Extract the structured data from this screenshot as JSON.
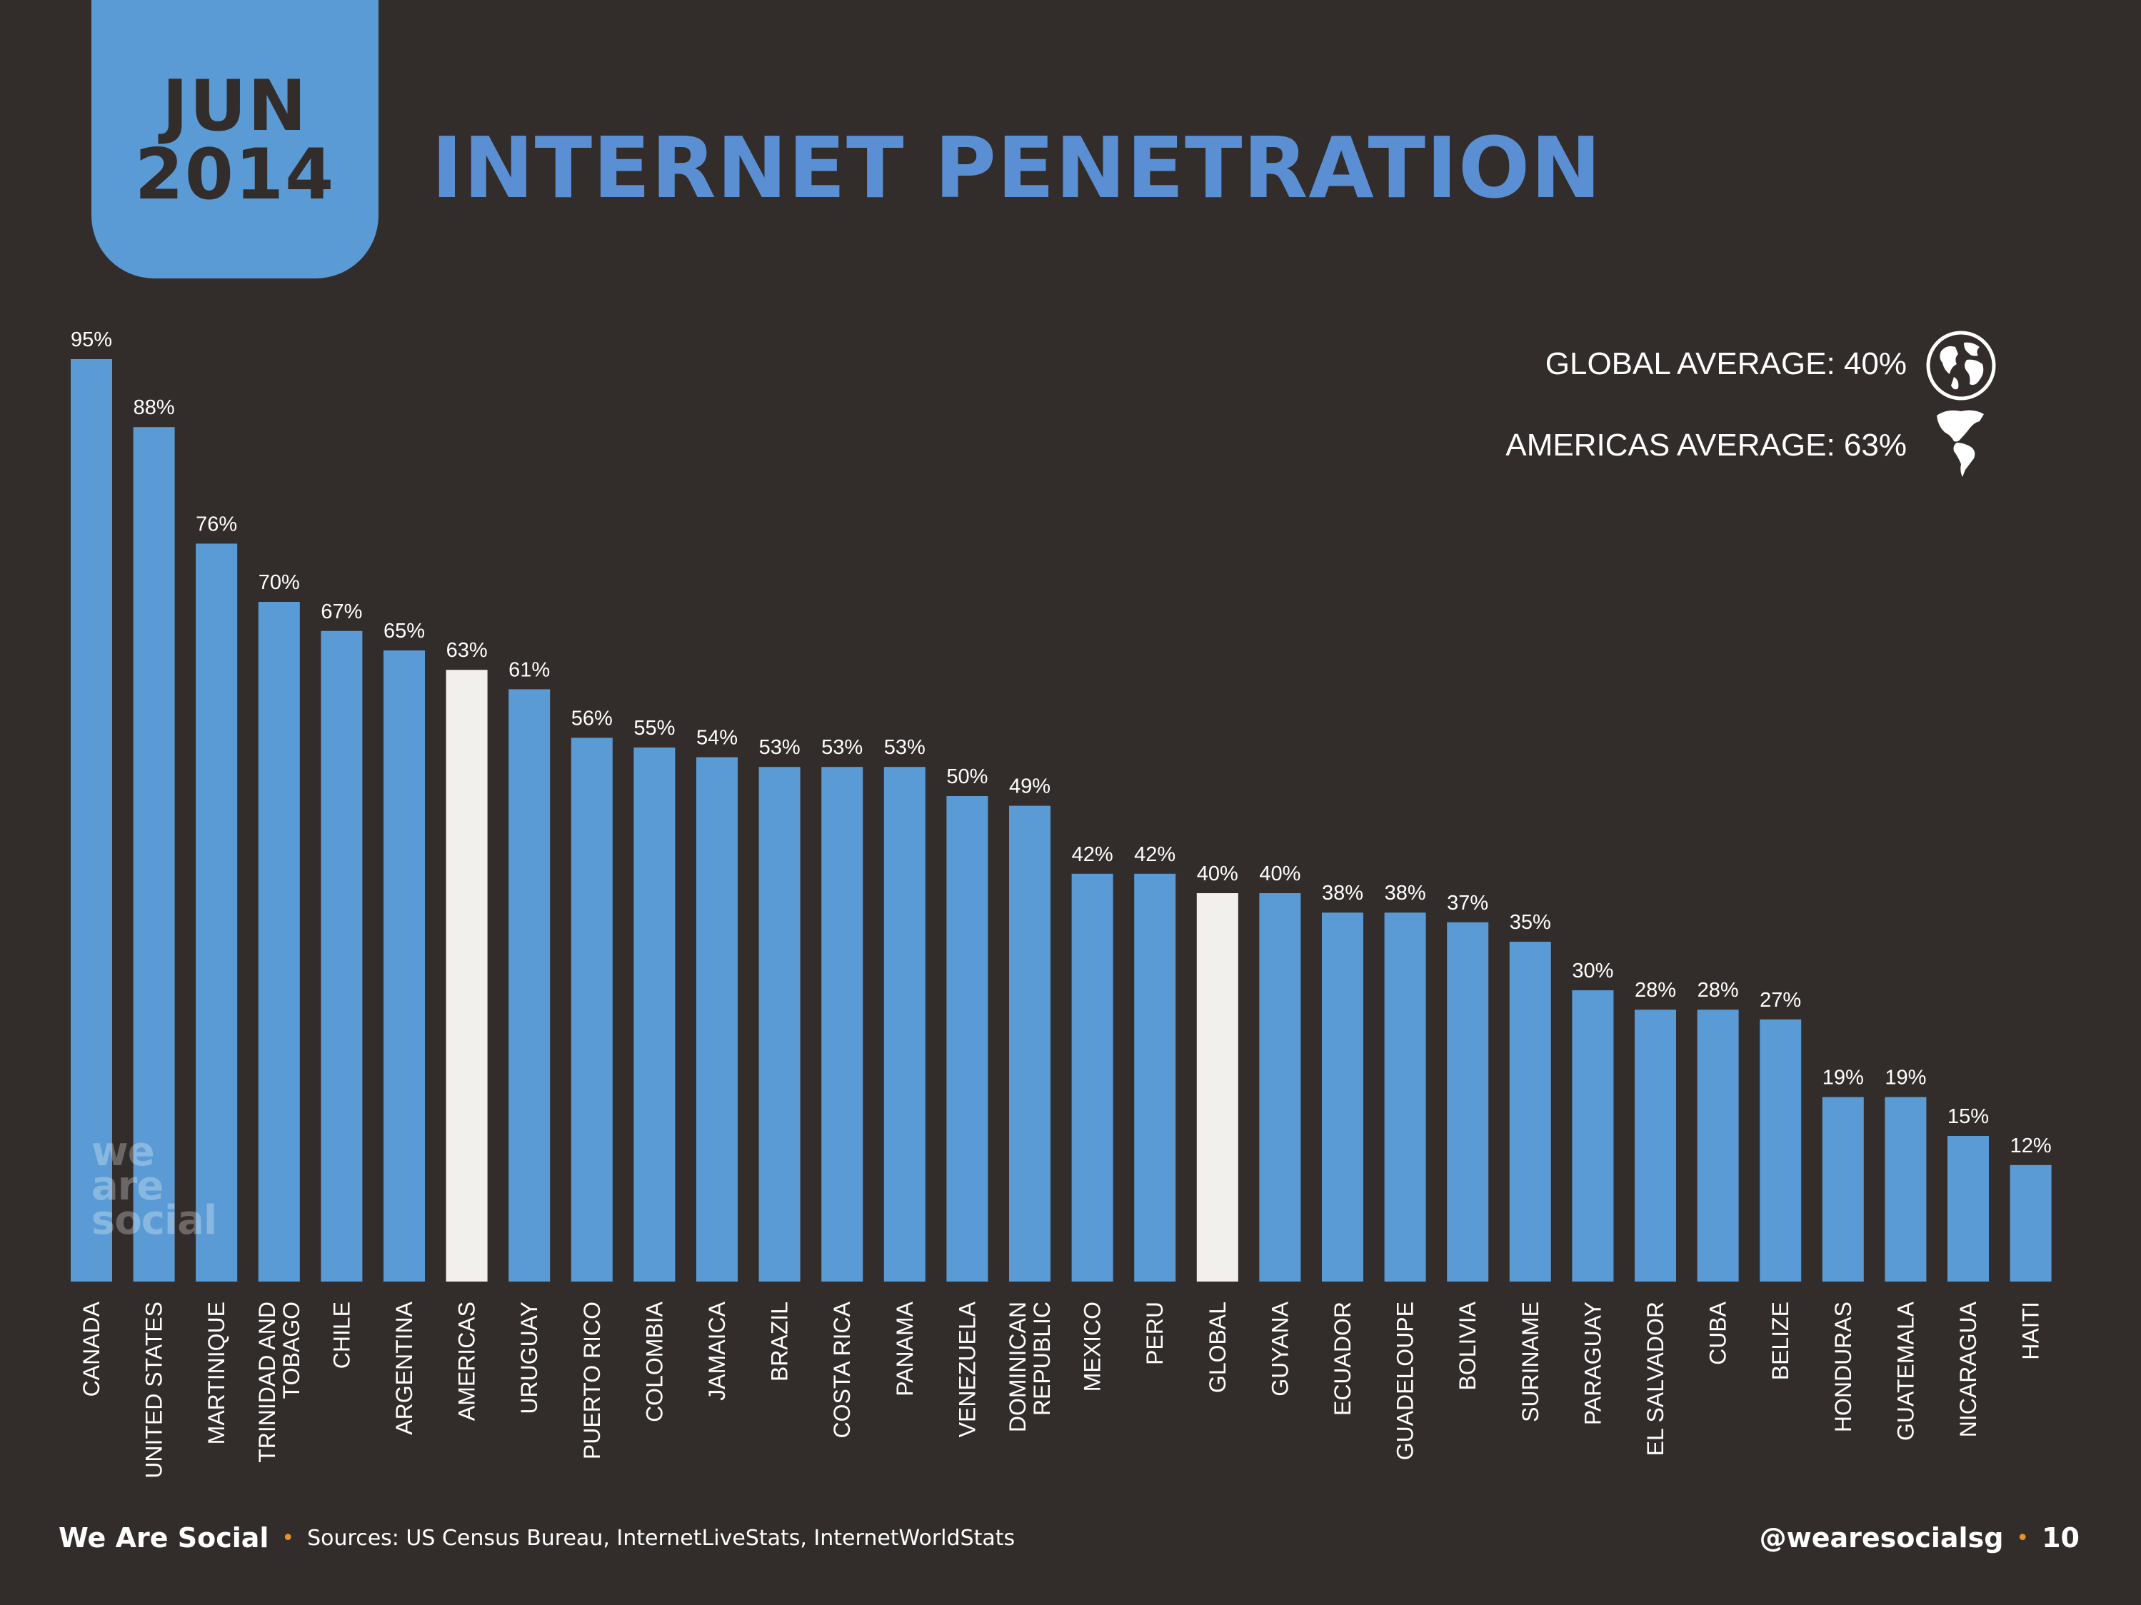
{
  "header": {
    "date_month": "JUN",
    "date_year": "2014",
    "title": "INTERNET PENETRATION"
  },
  "averages": {
    "global_label": "GLOBAL AVERAGE: 40%",
    "global_icon": "globe-icon",
    "americas_label": "AMERICAS AVERAGE: 63%",
    "americas_icon": "americas-map-icon"
  },
  "watermark": [
    "we",
    "are",
    "social"
  ],
  "footer": {
    "brand": "We Are Social",
    "sources": "Sources: US Census Bureau, InternetLiveStats, InternetWorldStats",
    "handle": "@wearesocialsg",
    "page_number": "10"
  },
  "colors": {
    "background": "#322d2b",
    "bar": "#5b9bd5",
    "highlight_bar": "#f2f0ed",
    "title": "#5b8fd4",
    "accent_dot": "#e8922e"
  },
  "chart_data": {
    "type": "bar",
    "ylim": [
      0,
      100
    ],
    "grid": false,
    "categories": [
      "CANADA",
      "UNITED STATES",
      "MARTINIQUE",
      "TRINIDAD AND\nTOBAGO",
      "CHILE",
      "ARGENTINA",
      "AMERICAS",
      "URUGUAY",
      "PUERTO RICO",
      "COLOMBIA",
      "JAMAICA",
      "BRAZIL",
      "COSTA RICA",
      "PANAMA",
      "VENEZUELA",
      "DOMINICAN\nREPUBLIC",
      "MEXICO",
      "PERU",
      "GLOBAL",
      "GUYANA",
      "ECUADOR",
      "GUADELOUPE",
      "BOLIVIA",
      "SURINAME",
      "PARAGUAY",
      "EL SALVADOR",
      "CUBA",
      "BELIZE",
      "HONDURAS",
      "GUATEMALA",
      "NICARAGUA",
      "HAITI"
    ],
    "values": [
      95,
      88,
      76,
      70,
      67,
      65,
      63,
      61,
      56,
      55,
      54,
      53,
      53,
      53,
      50,
      49,
      42,
      42,
      40,
      40,
      38,
      38,
      37,
      35,
      30,
      28,
      28,
      27,
      19,
      19,
      15,
      12
    ],
    "labels": [
      "95%",
      "88%",
      "76%",
      "70%",
      "67%",
      "65%",
      "63%",
      "61%",
      "56%",
      "55%",
      "54%",
      "53%",
      "53%",
      "53%",
      "50%",
      "49%",
      "42%",
      "42%",
      "40%",
      "40%",
      "38%",
      "38%",
      "37%",
      "35%",
      "30%",
      "28%",
      "28%",
      "27%",
      "19%",
      "19%",
      "15%",
      "12%"
    ],
    "highlighted": [
      "AMERICAS",
      "GLOBAL"
    ]
  }
}
